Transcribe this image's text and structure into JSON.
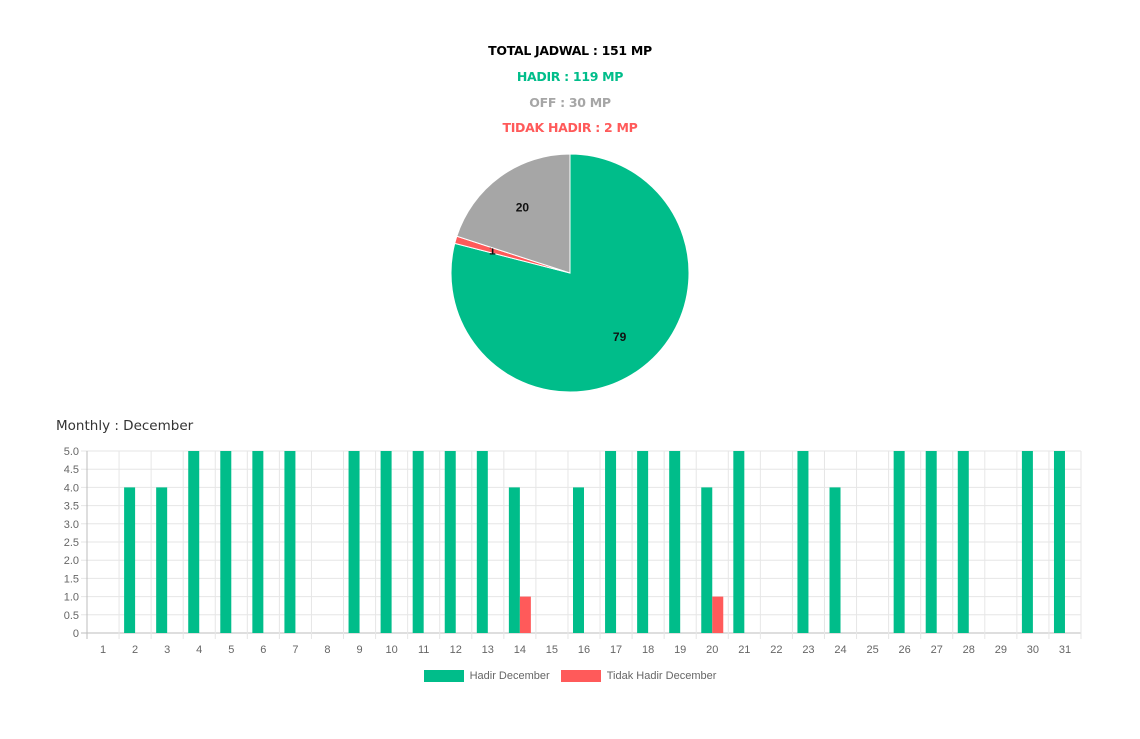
{
  "summary": {
    "total": "TOTAL JADWAL : 151 MP",
    "hadir": "HADIR : 119 MP",
    "off": "OFF : 30 MP",
    "tidak_hadir": "TIDAK HADIR : 2 MP"
  },
  "colors": {
    "hadir": "#00bd8a",
    "off": "#a6a6a6",
    "tidak_hadir": "#ff5a5a",
    "total": "#000000"
  },
  "monthly_title": "Monthly : December",
  "legend": {
    "hadir": "Hadir December",
    "tidak_hadir": "Tidak Hadir December"
  },
  "chart_data": [
    {
      "type": "pie",
      "labels": [
        "Hadir",
        "Tidak Hadir",
        "Off"
      ],
      "values": [
        79,
        1,
        20
      ],
      "data_labels": [
        "79",
        "1",
        "20"
      ],
      "colors": [
        "#00bd8a",
        "#ff5a5a",
        "#a6a6a6"
      ]
    },
    {
      "type": "bar",
      "categories": [
        "1",
        "2",
        "3",
        "4",
        "5",
        "6",
        "7",
        "8",
        "9",
        "10",
        "11",
        "12",
        "13",
        "14",
        "15",
        "16",
        "17",
        "18",
        "19",
        "20",
        "21",
        "22",
        "23",
        "24",
        "25",
        "26",
        "27",
        "28",
        "29",
        "30",
        "31"
      ],
      "series": [
        {
          "name": "Hadir December",
          "color": "#00bd8a",
          "values": [
            0,
            4,
            4,
            5,
            5,
            5,
            5,
            0,
            5,
            5,
            5,
            5,
            5,
            4,
            0,
            4,
            5,
            5,
            5,
            4,
            5,
            0,
            5,
            4,
            0,
            5,
            5,
            5,
            0,
            5,
            5
          ]
        },
        {
          "name": "Tidak Hadir December",
          "color": "#ff5a5a",
          "values": [
            0,
            0,
            0,
            0,
            0,
            0,
            0,
            0,
            0,
            0,
            0,
            0,
            0,
            1,
            0,
            0,
            0,
            0,
            0,
            1,
            0,
            0,
            0,
            0,
            0,
            0,
            0,
            0,
            0,
            0,
            0
          ]
        }
      ],
      "yticks": [
        "0",
        "0.5",
        "1.0",
        "1.5",
        "2.0",
        "2.5",
        "3.0",
        "3.5",
        "4.0",
        "4.5",
        "5.0"
      ],
      "ylim": [
        0,
        5
      ],
      "grid": true,
      "legend": "bottom"
    }
  ]
}
